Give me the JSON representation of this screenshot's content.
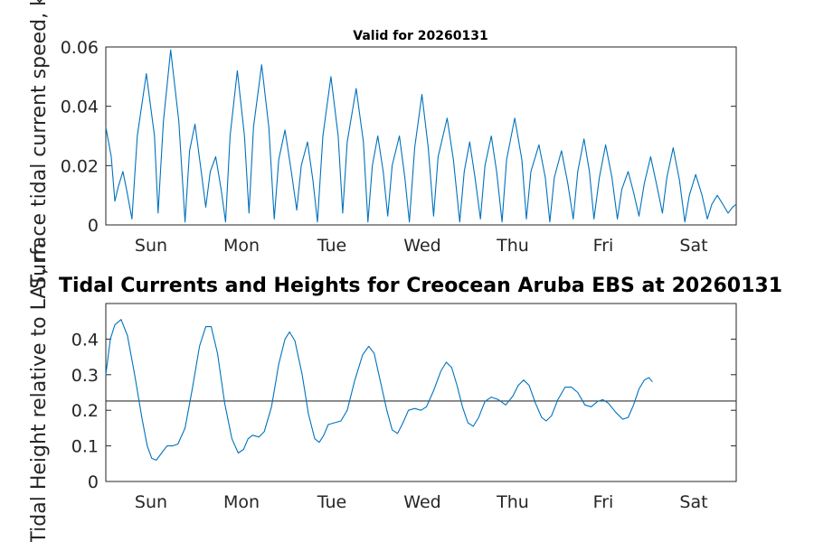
{
  "chart_data": [
    {
      "type": "line",
      "title": "Valid for 20260131",
      "xlabel": "",
      "ylabel": "Surface tidal current speed, kn",
      "x_tick_labels": [
        "Sun",
        "Mon",
        "Tue",
        "Wed",
        "Thu",
        "Fri",
        "Sat"
      ],
      "y_ticks": [
        0,
        0.02,
        0.04,
        0.06
      ],
      "y_tick_labels": [
        "0",
        "0.02",
        "0.04",
        "0.06"
      ],
      "ylim": [
        0,
        0.06
      ],
      "xlim_days": [
        0,
        7
      ],
      "grid": false,
      "series": [
        {
          "color": "#0072BD",
          "points": [
            [
              0.0,
              0.033
            ],
            [
              0.06,
              0.023
            ],
            [
              0.1,
              0.008
            ],
            [
              0.14,
              0.013
            ],
            [
              0.19,
              0.018
            ],
            [
              0.23,
              0.012
            ],
            [
              0.29,
              0.002
            ],
            [
              0.35,
              0.03
            ],
            [
              0.45,
              0.051
            ],
            [
              0.54,
              0.03
            ],
            [
              0.58,
              0.004
            ],
            [
              0.64,
              0.035
            ],
            [
              0.72,
              0.059
            ],
            [
              0.81,
              0.035
            ],
            [
              0.88,
              0.001
            ],
            [
              0.93,
              0.025
            ],
            [
              0.99,
              0.034
            ],
            [
              1.06,
              0.018
            ],
            [
              1.11,
              0.006
            ],
            [
              1.16,
              0.018
            ],
            [
              1.22,
              0.023
            ],
            [
              1.28,
              0.012
            ],
            [
              1.33,
              0.001
            ],
            [
              1.38,
              0.03
            ],
            [
              1.46,
              0.052
            ],
            [
              1.54,
              0.03
            ],
            [
              1.59,
              0.004
            ],
            [
              1.64,
              0.033
            ],
            [
              1.73,
              0.054
            ],
            [
              1.81,
              0.033
            ],
            [
              1.87,
              0.002
            ],
            [
              1.92,
              0.022
            ],
            [
              1.99,
              0.032
            ],
            [
              2.06,
              0.018
            ],
            [
              2.12,
              0.005
            ],
            [
              2.17,
              0.02
            ],
            [
              2.24,
              0.028
            ],
            [
              2.3,
              0.015
            ],
            [
              2.35,
              0.001
            ],
            [
              2.41,
              0.03
            ],
            [
              2.5,
              0.05
            ],
            [
              2.58,
              0.03
            ],
            [
              2.63,
              0.004
            ],
            [
              2.68,
              0.028
            ],
            [
              2.78,
              0.046
            ],
            [
              2.86,
              0.028
            ],
            [
              2.91,
              0.001
            ],
            [
              2.96,
              0.02
            ],
            [
              3.02,
              0.03
            ],
            [
              3.08,
              0.018
            ],
            [
              3.13,
              0.003
            ],
            [
              3.18,
              0.02
            ],
            [
              3.26,
              0.03
            ],
            [
              3.32,
              0.016
            ],
            [
              3.37,
              0.001
            ],
            [
              3.43,
              0.026
            ],
            [
              3.51,
              0.044
            ],
            [
              3.58,
              0.026
            ],
            [
              3.64,
              0.003
            ],
            [
              3.69,
              0.023
            ],
            [
              3.79,
              0.036
            ],
            [
              3.86,
              0.022
            ],
            [
              3.93,
              0.001
            ],
            [
              3.98,
              0.018
            ],
            [
              4.04,
              0.028
            ],
            [
              4.1,
              0.016
            ],
            [
              4.16,
              0.002
            ],
            [
              4.21,
              0.02
            ],
            [
              4.28,
              0.03
            ],
            [
              4.34,
              0.018
            ],
            [
              4.4,
              0.001
            ],
            [
              4.45,
              0.022
            ],
            [
              4.54,
              0.036
            ],
            [
              4.62,
              0.022
            ],
            [
              4.67,
              0.002
            ],
            [
              4.72,
              0.018
            ],
            [
              4.81,
              0.027
            ],
            [
              4.88,
              0.016
            ],
            [
              4.93,
              0.001
            ],
            [
              4.98,
              0.016
            ],
            [
              5.06,
              0.025
            ],
            [
              5.13,
              0.014
            ],
            [
              5.19,
              0.002
            ],
            [
              5.24,
              0.018
            ],
            [
              5.31,
              0.029
            ],
            [
              5.37,
              0.018
            ],
            [
              5.42,
              0.002
            ],
            [
              5.48,
              0.016
            ],
            [
              5.55,
              0.027
            ],
            [
              5.62,
              0.016
            ],
            [
              5.68,
              0.002
            ],
            [
              5.73,
              0.012
            ],
            [
              5.8,
              0.018
            ],
            [
              5.86,
              0.011
            ],
            [
              5.92,
              0.003
            ],
            [
              5.98,
              0.014
            ],
            [
              6.05,
              0.023
            ],
            [
              6.12,
              0.013
            ],
            [
              6.18,
              0.004
            ],
            [
              6.23,
              0.016
            ],
            [
              6.3,
              0.026
            ],
            [
              6.37,
              0.015
            ],
            [
              6.43,
              0.001
            ],
            [
              6.48,
              0.01
            ],
            [
              6.55,
              0.017
            ],
            [
              6.62,
              0.01
            ],
            [
              6.68,
              0.002
            ],
            [
              6.73,
              0.007
            ],
            [
              6.79,
              0.01
            ],
            [
              6.85,
              0.007
            ],
            [
              6.91,
              0.004
            ],
            [
              6.96,
              0.006
            ],
            [
              7.0,
              0.007
            ]
          ]
        }
      ]
    },
    {
      "type": "line",
      "title": "Tidal Currents and Heights for Creocean Aruba EBS at 20260131",
      "xlabel": "",
      "ylabel": "Tidal Height relative to LAT, m",
      "x_tick_labels": [
        "Sun",
        "Mon",
        "Tue",
        "Wed",
        "Thu",
        "Fri",
        "Sat"
      ],
      "y_ticks": [
        0,
        0.1,
        0.2,
        0.3,
        0.4
      ],
      "y_tick_labels": [
        "0",
        "0.1",
        "0.2",
        "0.3",
        "0.4"
      ],
      "ylim": [
        0,
        0.5
      ],
      "xlim_days": [
        0,
        7
      ],
      "grid": false,
      "reference_line": {
        "y": 0.226,
        "color": "#333333"
      },
      "series": [
        {
          "color": "#0072BD",
          "points": [
            [
              0.0,
              0.3
            ],
            [
              0.05,
              0.4
            ],
            [
              0.1,
              0.44
            ],
            [
              0.17,
              0.455
            ],
            [
              0.24,
              0.41
            ],
            [
              0.32,
              0.3
            ],
            [
              0.4,
              0.18
            ],
            [
              0.46,
              0.1
            ],
            [
              0.51,
              0.065
            ],
            [
              0.56,
              0.06
            ],
            [
              0.62,
              0.08
            ],
            [
              0.68,
              0.1
            ],
            [
              0.74,
              0.1
            ],
            [
              0.8,
              0.105
            ],
            [
              0.88,
              0.15
            ],
            [
              0.96,
              0.26
            ],
            [
              1.04,
              0.38
            ],
            [
              1.11,
              0.435
            ],
            [
              1.17,
              0.435
            ],
            [
              1.24,
              0.36
            ],
            [
              1.32,
              0.22
            ],
            [
              1.4,
              0.12
            ],
            [
              1.47,
              0.08
            ],
            [
              1.53,
              0.09
            ],
            [
              1.58,
              0.12
            ],
            [
              1.63,
              0.13
            ],
            [
              1.7,
              0.125
            ],
            [
              1.76,
              0.14
            ],
            [
              1.84,
              0.21
            ],
            [
              1.92,
              0.33
            ],
            [
              1.99,
              0.4
            ],
            [
              2.04,
              0.42
            ],
            [
              2.1,
              0.395
            ],
            [
              2.18,
              0.3
            ],
            [
              2.25,
              0.19
            ],
            [
              2.32,
              0.12
            ],
            [
              2.37,
              0.11
            ],
            [
              2.42,
              0.13
            ],
            [
              2.47,
              0.16
            ],
            [
              2.54,
              0.165
            ],
            [
              2.61,
              0.17
            ],
            [
              2.68,
              0.2
            ],
            [
              2.76,
              0.28
            ],
            [
              2.85,
              0.355
            ],
            [
              2.92,
              0.38
            ],
            [
              2.98,
              0.36
            ],
            [
              3.05,
              0.28
            ],
            [
              3.12,
              0.2
            ],
            [
              3.18,
              0.145
            ],
            [
              3.24,
              0.135
            ],
            [
              3.3,
              0.165
            ],
            [
              3.36,
              0.2
            ],
            [
              3.43,
              0.205
            ],
            [
              3.5,
              0.2
            ],
            [
              3.56,
              0.21
            ],
            [
              3.64,
              0.255
            ],
            [
              3.72,
              0.31
            ],
            [
              3.78,
              0.335
            ],
            [
              3.84,
              0.32
            ],
            [
              3.9,
              0.27
            ],
            [
              3.96,
              0.21
            ],
            [
              4.02,
              0.165
            ],
            [
              4.08,
              0.155
            ],
            [
              4.14,
              0.18
            ],
            [
              4.21,
              0.225
            ],
            [
              4.28,
              0.237
            ],
            [
              4.36,
              0.23
            ],
            [
              4.44,
              0.215
            ],
            [
              4.52,
              0.24
            ],
            [
              4.58,
              0.27
            ],
            [
              4.64,
              0.285
            ],
            [
              4.7,
              0.27
            ],
            [
              4.77,
              0.22
            ],
            [
              4.84,
              0.18
            ],
            [
              4.89,
              0.17
            ],
            [
              4.95,
              0.185
            ],
            [
              5.02,
              0.23
            ],
            [
              5.1,
              0.265
            ],
            [
              5.17,
              0.265
            ],
            [
              5.24,
              0.25
            ],
            [
              5.32,
              0.215
            ],
            [
              5.39,
              0.21
            ],
            [
              5.46,
              0.225
            ],
            [
              5.52,
              0.23
            ],
            [
              5.58,
              0.22
            ],
            [
              5.66,
              0.195
            ],
            [
              5.74,
              0.175
            ],
            [
              5.8,
              0.18
            ],
            [
              5.86,
              0.215
            ],
            [
              5.92,
              0.26
            ],
            [
              5.98,
              0.285
            ],
            [
              6.03,
              0.292
            ],
            [
              6.07,
              0.28
            ]
          ]
        }
      ]
    }
  ]
}
